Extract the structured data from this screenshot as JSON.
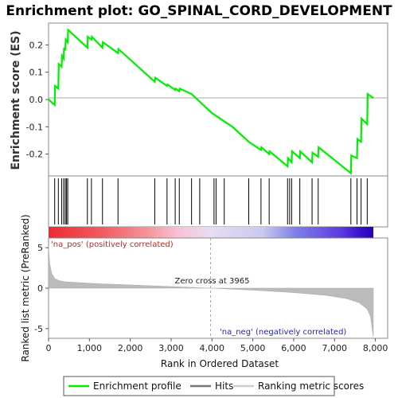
{
  "chart_data": {
    "type": "line",
    "title": "Enrichment plot: GO_SPINAL_CORD_DEVELOPMENT",
    "es_panel": {
      "ylabel": "Enrichment score (ES)",
      "yticks": [
        0.2,
        0.1,
        0.0,
        -0.1,
        -0.2
      ],
      "ylim": [
        -0.28,
        0.28
      ],
      "series": [
        {
          "name": "Enrichment profile",
          "color": "#00ee00",
          "x": [
            0,
            150,
            160,
            240,
            250,
            320,
            330,
            370,
            380,
            410,
            420,
            470,
            480,
            950,
            960,
            1050,
            1060,
            1320,
            1330,
            1700,
            1710,
            2600,
            2610,
            2900,
            2910,
            3100,
            3110,
            3200,
            3210,
            3500,
            4000,
            4500,
            4900,
            4950,
            5200,
            5210,
            5400,
            5410,
            5850,
            5860,
            5950,
            5960,
            6150,
            6160,
            6450,
            6460,
            6600,
            6610,
            7400,
            7410,
            7550,
            7560,
            7650,
            7660,
            7800,
            7810,
            7950
          ],
          "y": [
            0.0,
            -0.02,
            0.05,
            0.04,
            0.13,
            0.12,
            0.16,
            0.15,
            0.19,
            0.18,
            0.22,
            0.21,
            0.255,
            0.19,
            0.23,
            0.22,
            0.23,
            0.19,
            0.21,
            0.17,
            0.185,
            0.065,
            0.08,
            0.05,
            0.055,
            0.035,
            0.04,
            0.03,
            0.04,
            0.02,
            -0.05,
            -0.1,
            -0.155,
            -0.16,
            -0.185,
            -0.175,
            -0.2,
            -0.19,
            -0.245,
            -0.215,
            -0.23,
            -0.19,
            -0.215,
            -0.19,
            -0.23,
            -0.195,
            -0.21,
            -0.175,
            -0.27,
            -0.205,
            -0.215,
            -0.145,
            -0.155,
            -0.07,
            -0.09,
            0.02,
            0.005
          ]
        }
      ]
    },
    "hits": [
      150,
      240,
      320,
      370,
      410,
      440,
      470,
      950,
      1050,
      1320,
      1700,
      2600,
      2900,
      3100,
      3200,
      3500,
      3700,
      4050,
      4100,
      4300,
      4900,
      5200,
      5400,
      5850,
      5900,
      5950,
      6150,
      6450,
      6600,
      7400,
      7550,
      7650,
      7800
    ],
    "rank_panel": {
      "ylabel": "Ranked list metric (PreRanked)",
      "xlabel": "Rank in Ordered Dataset",
      "yticks": [
        5,
        0,
        -5
      ],
      "ylim": [
        -6.2,
        6.2
      ],
      "xticks": [
        0,
        1000,
        2000,
        3000,
        4000,
        5000,
        6000,
        7000,
        8000
      ],
      "xlim": [
        0,
        8300
      ],
      "n_genes": 7950,
      "zero_cross": 3965,
      "zero_cross_label": "Zero cross at 3965",
      "pos_label": "'na_pos' (positively correlated)",
      "neg_label": "'na_neg' (negatively correlated)",
      "profile_x": [
        0,
        30,
        80,
        150,
        250,
        400,
        700,
        1200,
        2000,
        3000,
        3965,
        5000,
        6000,
        6800,
        7300,
        7600,
        7800,
        7880,
        7920,
        7950
      ],
      "profile_y": [
        5.0,
        3.0,
        1.8,
        1.2,
        0.95,
        0.8,
        0.7,
        0.55,
        0.4,
        0.2,
        0.0,
        -0.25,
        -0.55,
        -0.9,
        -1.3,
        -1.8,
        -2.6,
        -3.5,
        -5.0,
        -6.0
      ]
    },
    "legend": {
      "placement": "bottom",
      "entries": [
        "Enrichment profile",
        "Hits",
        "Ranking metric scores"
      ]
    }
  }
}
